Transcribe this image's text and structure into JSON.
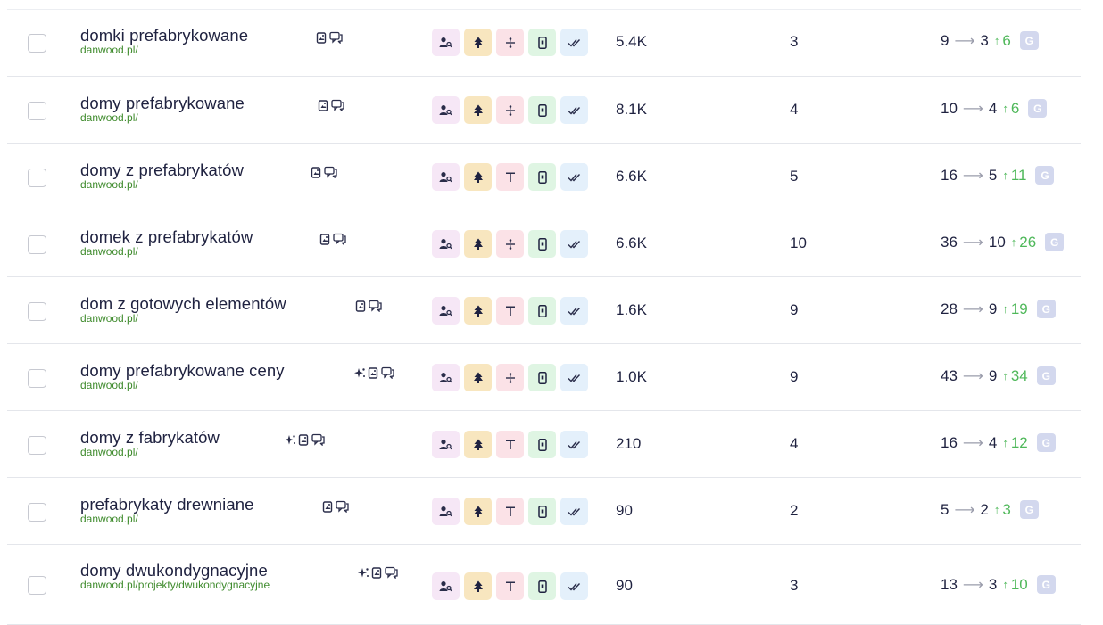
{
  "rows": [
    {
      "keyword": "domki prefabrykowane",
      "url": "danwood.pl/",
      "ai": false,
      "volume": "5.4K",
      "count": "3",
      "from": "9",
      "to": "3",
      "change": "6",
      "type3": "divide"
    },
    {
      "keyword": "domy prefabrykowane",
      "url": "danwood.pl/",
      "ai": false,
      "volume": "8.1K",
      "count": "4",
      "from": "10",
      "to": "4",
      "change": "6",
      "type3": "divide"
    },
    {
      "keyword": "domy z prefabrykatów",
      "url": "danwood.pl/",
      "ai": false,
      "volume": "6.6K",
      "count": "5",
      "from": "16",
      "to": "5",
      "change": "11",
      "type3": "top"
    },
    {
      "keyword": "domek z prefabrykatów",
      "url": "danwood.pl/",
      "ai": false,
      "volume": "6.6K",
      "count": "10",
      "from": "36",
      "to": "10",
      "change": "26",
      "type3": "divide"
    },
    {
      "keyword": "dom z gotowych elementów",
      "url": "danwood.pl/",
      "ai": false,
      "volume": "1.6K",
      "count": "9",
      "from": "28",
      "to": "9",
      "change": "19",
      "type3": "top"
    },
    {
      "keyword": "domy prefabrykowane ceny",
      "url": "danwood.pl/",
      "ai": true,
      "volume": "1.0K",
      "count": "9",
      "from": "43",
      "to": "9",
      "change": "34",
      "type3": "divide"
    },
    {
      "keyword": "domy z fabrykatów",
      "url": "danwood.pl/",
      "ai": true,
      "volume": "210",
      "count": "4",
      "from": "16",
      "to": "4",
      "change": "12",
      "type3": "top"
    },
    {
      "keyword": "prefabrykaty drewniane",
      "url": "danwood.pl/",
      "ai": false,
      "volume": "90",
      "count": "2",
      "from": "5",
      "to": "2",
      "change": "3",
      "type3": "top"
    },
    {
      "keyword": "domy dwukondygnacyjne",
      "url": "danwood.pl/projekty/dwukondygnacyjne",
      "ai": true,
      "volume": "90",
      "count": "3",
      "from": "13",
      "to": "3",
      "change": "10",
      "type3": "top"
    }
  ],
  "arrow_symbol": "⟶",
  "up_symbol": "↑",
  "badge_letter": "G",
  "colors": {
    "text": "#1f2240",
    "url": "#3f8b2d",
    "up": "#4fb85a",
    "badge": "#d3d8ee"
  }
}
